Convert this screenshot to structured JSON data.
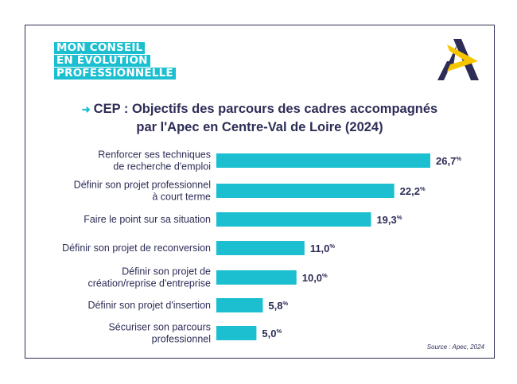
{
  "header": {
    "badge_lines": [
      "MON CONSEIL",
      "EN ÉVOLUTION",
      "PROFESSIONNELLE"
    ],
    "logo_icon": "apec-logo-icon"
  },
  "chart_data": {
    "type": "bar",
    "orientation": "horizontal",
    "title": "CEP : Objectifs des parcours des cadres accompagnés par l'Apec en Centre-Val de Loire (2024)",
    "title_lines": [
      "CEP : Objectifs des parcours des cadres accompagnés",
      "par l'Apec en Centre-Val de Loire (2024)"
    ],
    "categories": [
      [
        "Renforcer ses techniques",
        "de recherche d'emploi"
      ],
      [
        "Définir son projet professionnel",
        "à court terme"
      ],
      [
        "Faire le point sur sa situation"
      ],
      [
        "Définir son projet de reconversion"
      ],
      [
        "Définir son projet de",
        "création/reprise d'entreprise"
      ],
      [
        "Définir son projet d'insertion"
      ],
      [
        "Sécuriser son parcours",
        "professionnel"
      ]
    ],
    "values": [
      26.7,
      22.2,
      19.3,
      11.0,
      10.0,
      5.8,
      5.0
    ],
    "value_labels": [
      "26,7",
      "22,2",
      "19,3",
      "11,0",
      "10,0",
      "5,8",
      "5,0"
    ],
    "unit": "%",
    "xlim": [
      0,
      26.7
    ],
    "grid": false,
    "legend": "none",
    "colors": {
      "bar": "#1bbfd0",
      "text": "#2d2d57",
      "accent": "#1bbfd0"
    }
  },
  "source": "Source : Apec, 2024"
}
